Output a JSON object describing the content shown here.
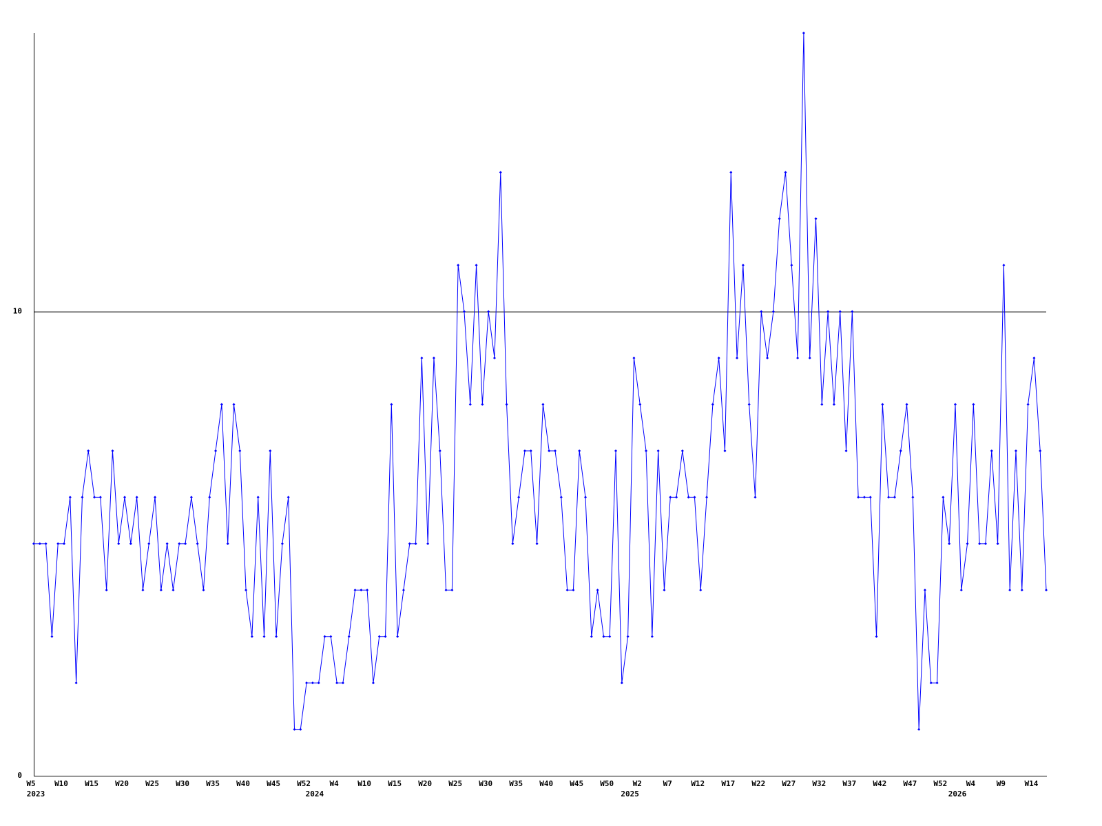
{
  "chart_data": {
    "type": "line",
    "categories": [
      "W5",
      null,
      null,
      null,
      null,
      "W10",
      null,
      null,
      null,
      null,
      "W15",
      null,
      null,
      null,
      null,
      "W20",
      null,
      null,
      null,
      null,
      "W25",
      null,
      null,
      null,
      null,
      "W30",
      null,
      null,
      null,
      null,
      "W35",
      null,
      null,
      null,
      null,
      "W40",
      null,
      null,
      null,
      null,
      "W45",
      null,
      null,
      null,
      null,
      "W52",
      null,
      null,
      null,
      null,
      "W4",
      null,
      null,
      null,
      null,
      "W10",
      null,
      null,
      null,
      null,
      "W15",
      null,
      null,
      null,
      null,
      "W20",
      null,
      null,
      null,
      null,
      "W25",
      null,
      null,
      null,
      null,
      "W30",
      null,
      null,
      null,
      null,
      "W35",
      null,
      null,
      null,
      null,
      "W40",
      null,
      null,
      null,
      null,
      "W45",
      null,
      null,
      null,
      null,
      "W50",
      null,
      null,
      null,
      null,
      "W2",
      null,
      null,
      null,
      null,
      "W7",
      null,
      null,
      null,
      null,
      "W12",
      null,
      null,
      null,
      null,
      "W17",
      null,
      null,
      null,
      null,
      "W22",
      null,
      null,
      null,
      null,
      "W27",
      null,
      null,
      null,
      null,
      "W32",
      null,
      null,
      null,
      null,
      "W37",
      null,
      null,
      null,
      null,
      "W42",
      null,
      null,
      null,
      null,
      "W47",
      null,
      null,
      null,
      null,
      "W52",
      null,
      null,
      null,
      null,
      "W4",
      null,
      null,
      null,
      null,
      "W9",
      null,
      null,
      null,
      null,
      "W14",
      null,
      null
    ],
    "year_labels": [
      "2023",
      null,
      null,
      null,
      null,
      null,
      null,
      null,
      null,
      null,
      null,
      null,
      null,
      null,
      null,
      null,
      null,
      null,
      null,
      null,
      null,
      null,
      null,
      null,
      null,
      null,
      null,
      null,
      null,
      null,
      null,
      null,
      null,
      null,
      null,
      null,
      null,
      null,
      null,
      null,
      null,
      null,
      null,
      null,
      null,
      null,
      "2024",
      null,
      null,
      null,
      null,
      null,
      null,
      null,
      null,
      null,
      null,
      null,
      null,
      null,
      null,
      null,
      null,
      null,
      null,
      null,
      null,
      null,
      null,
      null,
      null,
      null,
      null,
      null,
      null,
      null,
      null,
      null,
      null,
      null,
      null,
      null,
      null,
      null,
      null,
      null,
      null,
      null,
      null,
      null,
      null,
      null,
      null,
      null,
      null,
      null,
      null,
      null,
      "2025",
      null,
      null,
      null,
      null,
      null,
      null,
      null,
      null,
      null,
      null,
      null,
      null,
      null,
      null,
      null,
      null,
      null,
      null,
      null,
      null,
      null,
      null,
      null,
      null,
      null,
      null,
      null,
      null,
      null,
      null,
      null,
      null,
      null,
      null,
      null,
      null,
      null,
      null,
      null,
      null,
      null,
      null,
      null,
      null,
      null,
      null,
      null,
      null,
      null,
      null,
      null,
      null,
      null,
      "2026",
      null,
      null,
      null,
      null,
      null,
      null,
      null,
      null,
      null,
      null,
      null,
      null,
      null,
      null,
      null,
      null
    ],
    "series": [
      {
        "color": "#0000ff",
        "values": [
          5,
          5,
          5,
          3,
          5,
          5,
          6,
          2,
          6,
          7,
          6,
          6,
          4,
          7,
          5,
          6,
          5,
          6,
          4,
          5,
          6,
          4,
          5,
          4,
          5,
          5,
          6,
          5,
          4,
          6,
          7,
          8,
          5,
          8,
          7,
          4,
          3,
          6,
          3,
          7,
          3,
          5,
          6,
          1,
          1,
          2,
          2,
          2,
          3,
          3,
          2,
          2,
          3,
          4,
          4,
          4,
          2,
          3,
          3,
          8,
          3,
          4,
          5,
          5,
          9,
          5,
          9,
          7,
          4,
          4,
          11,
          10,
          8,
          11,
          8,
          10,
          9,
          13,
          8,
          5,
          6,
          7,
          7,
          5,
          8,
          7,
          7,
          6,
          4,
          4,
          7,
          6,
          3,
          4,
          3,
          3,
          7,
          2,
          3,
          9,
          8,
          7,
          3,
          7,
          4,
          6,
          6,
          7,
          6,
          6,
          4,
          6,
          8,
          9,
          7,
          13,
          9,
          11,
          8,
          6,
          10,
          9,
          10,
          12,
          13,
          11,
          9,
          16,
          9,
          12,
          8,
          10,
          8,
          10,
          7,
          10,
          6,
          6,
          6,
          3,
          8,
          6,
          6,
          7,
          8,
          6,
          1,
          4,
          2,
          2,
          6,
          5,
          8,
          4,
          5,
          8,
          5,
          5,
          7,
          5,
          11,
          4,
          7,
          4,
          8,
          9,
          7,
          4
        ]
      }
    ],
    "ylim": [
      0,
      16
    ],
    "yticks": [
      0,
      10
    ],
    "grid": true
  }
}
